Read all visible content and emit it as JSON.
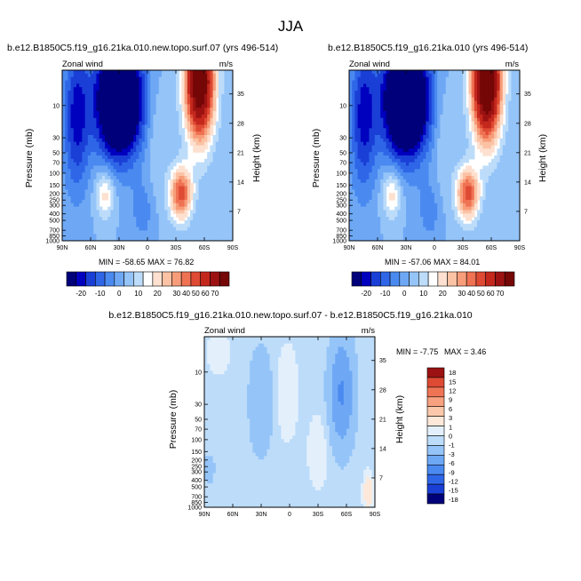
{
  "page": {
    "title": "JJA"
  },
  "palettes": {
    "full": [
      "#00007a",
      "#0000bf",
      "#1a3fd6",
      "#2f66e8",
      "#4a8af0",
      "#6ea8f5",
      "#95c4f8",
      "#bcdcfa",
      "#ffffff",
      "#fde0cf",
      "#fbc2a4",
      "#f79d7a",
      "#ef7253",
      "#de4a33",
      "#c4281d",
      "#9c1212",
      "#750707"
    ],
    "diff": [
      "#00007a",
      "#0000bf",
      "#1a3fd6",
      "#2f66e8",
      "#4a8af0",
      "#6ea8f5",
      "#95c4f8",
      "#bcdcfa",
      "#e3f0fc",
      "#fde8d9",
      "#fbc8ab",
      "#f7a180",
      "#ef7456",
      "#de4a33",
      "#c4281d",
      "#9c1212",
      "#750707"
    ]
  },
  "panels": [
    {
      "id": "top-left",
      "title": "b.e12.B1850C5.f19_g16.21ka.010.new.topo.surf.07 (yrs 496-514)",
      "left_label": "Zonal wind",
      "right_label": "m/s",
      "ylabel": "Pressure (mb)",
      "y2label": "Height (km)",
      "min_label": "MIN = -58.65",
      "max_label": "MAX =  76.82",
      "min_value": -58.65,
      "max_value": 76.82
    },
    {
      "id": "top-right",
      "title": "b.e12.B1850C5.f19_g16.21ka.010 (yrs 496-514)",
      "left_label": "Zonal wind",
      "right_label": "m/s",
      "ylabel": "Pressure (mb)",
      "y2label": "Height (km)",
      "min_label": "MIN = -57.06",
      "max_label": "MAX =  84.01",
      "min_value": -57.06,
      "max_value": 84.01
    },
    {
      "id": "bottom",
      "title": "b.e12.B1850C5.f19_g16.21ka.010.new.topo.surf.07 - b.e12.B1850C5.f19_g16.21ka.010",
      "left_label": "Zonal wind",
      "right_label": "m/s",
      "ylabel": "Pressure (mb)",
      "y2label": "Height (km)",
      "min_label": "MIN =  -7.75",
      "max_label": "MAX =   3.46",
      "min_value": -7.75,
      "max_value": 3.46
    }
  ],
  "colorbars": {
    "full": {
      "levels": [
        -25,
        -20,
        -15,
        -10,
        -5,
        0,
        5,
        10,
        15,
        20,
        25,
        30,
        35,
        40,
        50,
        60,
        70
      ],
      "tick_labels": [
        "-20",
        "-10",
        "0",
        "10",
        "20",
        "30",
        "40",
        "50",
        "60",
        "70"
      ]
    },
    "diff": {
      "levels": [
        18,
        15,
        12,
        9,
        6,
        3,
        1,
        0,
        -1,
        -3,
        -6,
        -9,
        -12,
        -15,
        -18
      ],
      "tick_labels": [
        "18",
        "15",
        "12",
        "9",
        "6",
        "3",
        "1",
        "0",
        "-1",
        "-3",
        "-6",
        "-9",
        "-12",
        "-15",
        "-18"
      ]
    }
  },
  "chart_data": [
    {
      "type": "heatmap",
      "title": "b.e12.B1850C5.f19_g16.21ka.010.new.topo.surf.07 (yrs 496-514)",
      "xlabel": "",
      "ylabel": "Pressure (mb)",
      "y2label": "Height (km)",
      "x_ticks": [
        "90N",
        "60N",
        "30N",
        "0",
        "30S",
        "60S",
        "90S"
      ],
      "y_ticks": [
        "10",
        "30",
        "50",
        "70",
        "100",
        "150",
        "200",
        "250",
        "300",
        "400",
        "500",
        "700",
        "850",
        "1000"
      ],
      "y2_ticks": [
        "35",
        "28",
        "21",
        "14",
        "7"
      ],
      "y_scale": "log",
      "ylim": [
        1000,
        3
      ],
      "xlim": [
        90,
        -90
      ],
      "units": "m/s",
      "min": -58.65,
      "max": 76.82,
      "features": [
        {
          "lat": 30,
          "p": 10,
          "value": -55
        },
        {
          "lat": -55,
          "p": 5,
          "value": 75
        },
        {
          "lat": -30,
          "p": 200,
          "value": 30
        },
        {
          "lat": 45,
          "p": 200,
          "value": 15
        }
      ]
    },
    {
      "type": "heatmap",
      "title": "b.e12.B1850C5.f19_g16.21ka.010 (yrs 496-514)",
      "xlabel": "",
      "ylabel": "Pressure (mb)",
      "y2label": "Height (km)",
      "x_ticks": [
        "90N",
        "60N",
        "30N",
        "0",
        "30S",
        "60S",
        "90S"
      ],
      "y_ticks": [
        "10",
        "30",
        "50",
        "70",
        "100",
        "150",
        "200",
        "250",
        "300",
        "400",
        "500",
        "700",
        "850",
        "1000"
      ],
      "y2_ticks": [
        "35",
        "28",
        "21",
        "14",
        "7"
      ],
      "y_scale": "log",
      "ylim": [
        1000,
        3
      ],
      "xlim": [
        90,
        -90
      ],
      "units": "m/s",
      "min": -57.06,
      "max": 84.01,
      "features": [
        {
          "lat": 30,
          "p": 10,
          "value": -55
        },
        {
          "lat": -55,
          "p": 5,
          "value": 80
        },
        {
          "lat": -30,
          "p": 200,
          "value": 30
        },
        {
          "lat": 45,
          "p": 200,
          "value": 15
        }
      ]
    },
    {
      "type": "heatmap",
      "title": "b.e12.B1850C5.f19_g16.21ka.010.new.topo.surf.07 - b.e12.B1850C5.f19_g16.21ka.010",
      "xlabel": "",
      "ylabel": "Pressure (mb)",
      "y2label": "Height (km)",
      "x_ticks": [
        "90N",
        "60N",
        "30N",
        "0",
        "30S",
        "60S",
        "90S"
      ],
      "y_ticks": [
        "10",
        "30",
        "50",
        "70",
        "100",
        "150",
        "200",
        "250",
        "300",
        "400",
        "500",
        "700",
        "850",
        "1000"
      ],
      "y2_ticks": [
        "35",
        "28",
        "21",
        "14",
        "7"
      ],
      "y_scale": "log",
      "ylim": [
        1000,
        3
      ],
      "xlim": [
        90,
        -90
      ],
      "units": "m/s",
      "min": -7.75,
      "max": 3.46,
      "features": [
        {
          "lat": -55,
          "p": 15,
          "value": -6
        },
        {
          "lat": 35,
          "p": 15,
          "value": -2
        },
        {
          "lat": 0,
          "p": 20,
          "value": 1
        },
        {
          "lat": -30,
          "p": 150,
          "value": 1
        },
        {
          "lat": -80,
          "p": 700,
          "value": 3
        }
      ]
    }
  ]
}
